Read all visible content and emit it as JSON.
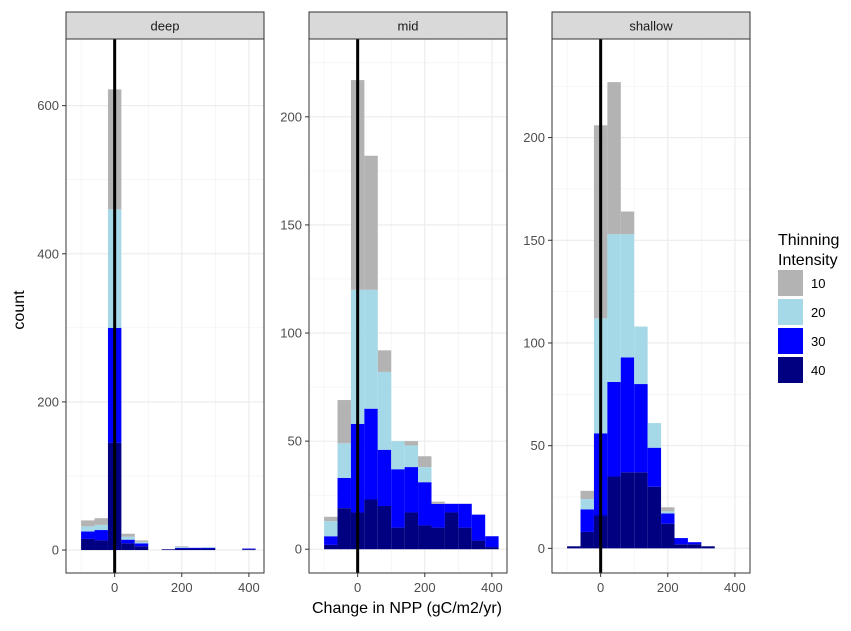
{
  "chart_data": {
    "type": "histogram",
    "layout": "facet_wrap stacked histogram, three panels with independent y scales",
    "xlabel": "Change in NPP (gC/m2/yr)",
    "ylabel": "count",
    "bin_width": 40,
    "bin_centers": [
      -80,
      -40,
      0,
      40,
      80,
      120,
      160,
      200,
      240,
      280,
      320,
      360,
      400
    ],
    "legend": {
      "title_line1": "Thinning",
      "title_line2": "Intensity",
      "position": "right",
      "entries": [
        {
          "label": "10",
          "color": "#b3b3b3"
        },
        {
          "label": "20",
          "color": "#a6d9e8"
        },
        {
          "label": "30",
          "color": "#0000ff"
        },
        {
          "label": "40",
          "color": "#000080"
        }
      ]
    },
    "stack_order_bottom_to_top": [
      "40",
      "30",
      "20",
      "10"
    ],
    "panels": [
      {
        "name": "deep",
        "xlim": [
          -145,
          445
        ],
        "ylim": [
          -31,
          690
        ],
        "x_ticks": [
          0,
          200,
          400
        ],
        "y_ticks": [
          0,
          200,
          400,
          600
        ],
        "vline": 0,
        "series": [
          {
            "name": "40",
            "values": [
              15,
              13,
              145,
              9,
              5,
              0,
              1,
              2,
              2,
              2,
              0,
              0,
              1
            ]
          },
          {
            "name": "30",
            "values": [
              10,
              14,
              155,
              5,
              4,
              0,
              0,
              1,
              1,
              1,
              0,
              0,
              1
            ]
          },
          {
            "name": "20",
            "values": [
              7,
              7,
              160,
              4,
              2,
              0,
              0,
              1,
              0,
              1,
              0,
              0,
              0
            ]
          },
          {
            "name": "10",
            "values": [
              8,
              9,
              162,
              4,
              2,
              0,
              0,
              1,
              0,
              0,
              0,
              0,
              0
            ]
          }
        ]
      },
      {
        "name": "mid",
        "xlim": [
          -145,
          445
        ],
        "ylim": [
          -11,
          236
        ],
        "x_ticks": [
          0,
          200,
          400
        ],
        "y_ticks": [
          0,
          50,
          100,
          150,
          200
        ],
        "vline": 0,
        "series": [
          {
            "name": "40",
            "values": [
              2,
              19,
              17,
              23,
              20,
              10,
              17,
              11,
              10,
              17,
              10,
              4,
              1
            ]
          },
          {
            "name": "30",
            "values": [
              4,
              14,
              41,
              42,
              26,
              27,
              21,
              20,
              11,
              4,
              11,
              12,
              5
            ]
          },
          {
            "name": "20",
            "values": [
              7,
              16,
              62,
              55,
              36,
              13,
              10,
              7,
              0,
              0,
              0,
              0,
              0
            ]
          },
          {
            "name": "10",
            "values": [
              2,
              20,
              97,
              62,
              10,
              0,
              2,
              5,
              1,
              0,
              0,
              0,
              0
            ]
          }
        ]
      },
      {
        "name": "shallow",
        "xlim": [
          -145,
          445
        ],
        "ylim": [
          -12,
          248
        ],
        "x_ticks": [
          0,
          200,
          400
        ],
        "y_ticks": [
          0,
          50,
          100,
          150,
          200
        ],
        "vline": 0,
        "series": [
          {
            "name": "40",
            "values": [
              1,
              8,
              16,
              35,
              37,
              37,
              30,
              12,
              2,
              2,
              1,
              0,
              0
            ]
          },
          {
            "name": "30",
            "values": [
              0,
              11,
              40,
              46,
              56,
              43,
              19,
              5,
              3,
              1,
              0,
              0,
              0
            ]
          },
          {
            "name": "20",
            "values": [
              0,
              5,
              56,
              72,
              60,
              28,
              12,
              1,
              0,
              0,
              0,
              0,
              0
            ]
          },
          {
            "name": "10",
            "values": [
              0,
              4,
              94,
              74,
              11,
              0,
              0,
              2,
              0,
              0,
              0,
              0,
              0
            ]
          }
        ]
      }
    ]
  }
}
